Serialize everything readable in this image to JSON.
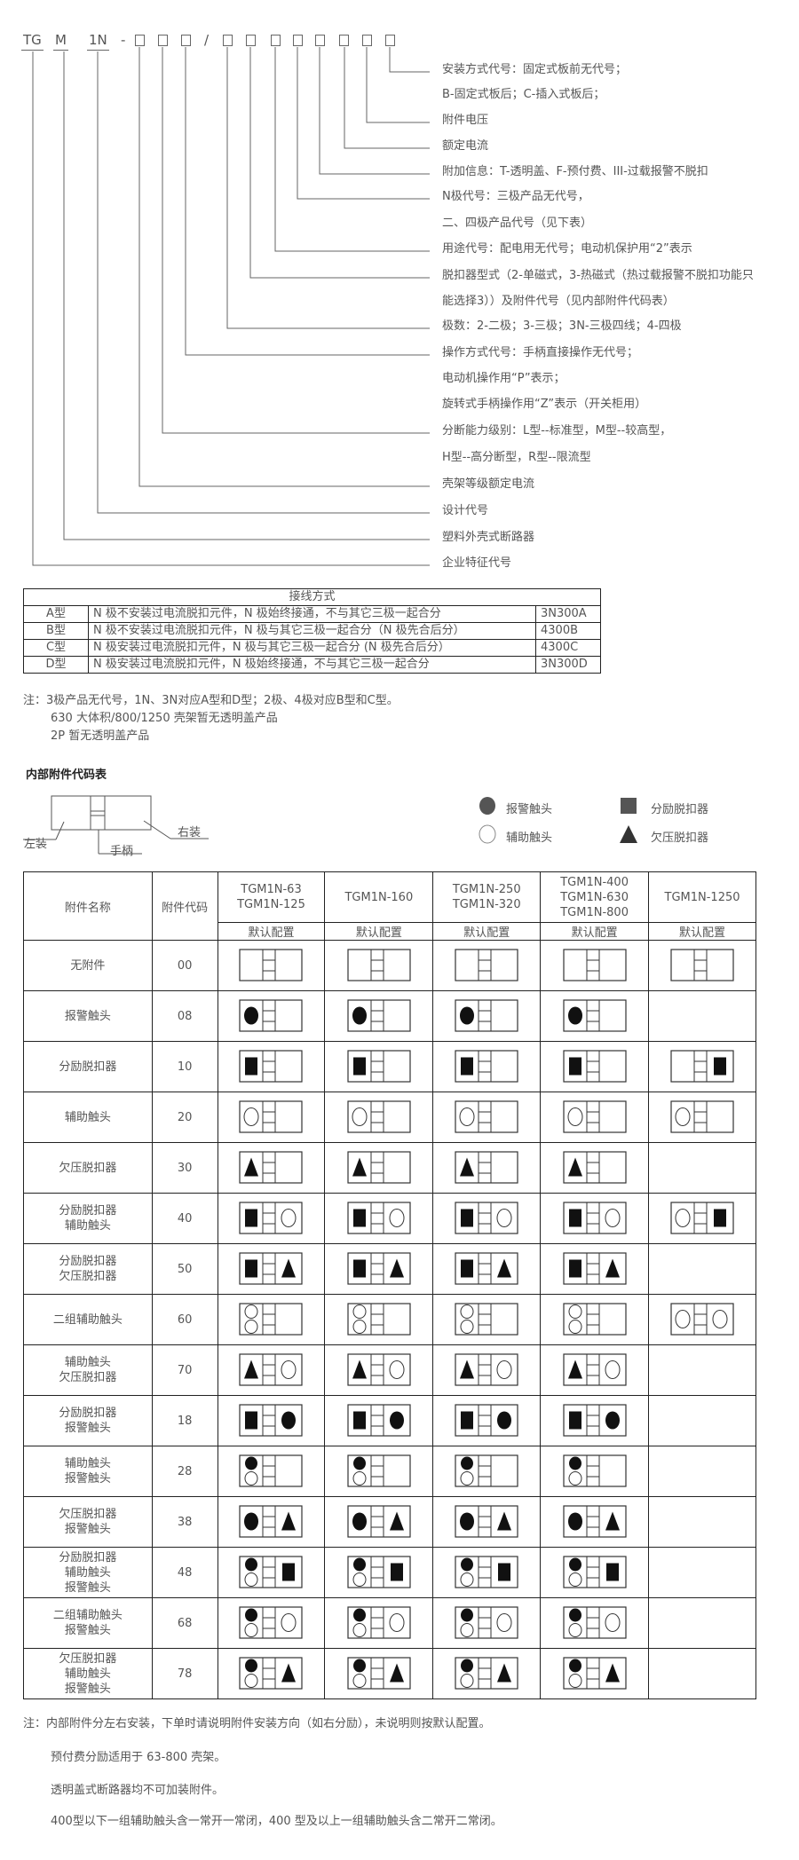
{
  "model_code": {
    "parts": [
      "TG",
      "M",
      "1N"
    ],
    "separator_dash": "-",
    "separator_slash": "/",
    "placeholder_boxes_before_slash": 3,
    "placeholder_boxes_after_slash": 8
  },
  "descriptions": [
    "安装方式代号：固定式板前无代号；",
    "B-固定式板后；C-插入式板后；",
    "附件电压",
    "额定电流",
    "附加信息：T-透明盖、F-预付费、III-过载报警不脱扣",
    "N极代号：三极产品无代号，",
    "二、四极产品代号（见下表）",
    "用途代号：配电用无代号；电动机保护用“2”表示",
    "脱扣器型式（2-单磁式，3-热磁式（热过载报警不脱扣功能只",
    "能选择3））及附件代号（见内部附件代码表）",
    "极数：2-二极；3-三极；3N-三极四线；4-四极",
    "操作方式代号：手柄直接操作无代号；",
    "电动机操作用“P”表示；",
    "旋转式手柄操作用“Z”表示（开关柜用）",
    "分断能力级别：L型--标准型，M型--较高型，",
    "H型--高分断型，R型--限流型",
    "壳架等级额定电流",
    "设计代号",
    "塑料外壳式断路器",
    "企业特征代号"
  ],
  "wiring_table": {
    "header": "接线方式",
    "rows": [
      {
        "type": "A型",
        "desc": "N 极不安装过电流脱扣元件，N 极始终接通，不与其它三极一起合分",
        "code": "3N300A"
      },
      {
        "type": "B型",
        "desc": "N 极不安装过电流脱扣元件，N 极与其它三极一起合分（N 极先合后分）",
        "code": "4300B"
      },
      {
        "type": "C型",
        "desc": "N 极安装过电流脱扣元件，N 极与其它三极一起合分 (N 极先合后分）",
        "code": "4300C"
      },
      {
        "type": "D型",
        "desc": "N 极安装过电流脱扣元件，N 极始终接通，不与其它三极一起合分",
        "code": "3N300D"
      }
    ]
  },
  "wiring_notes": [
    "注：3极产品无代号，1N、3N对应A型和D型；2极、4极对应B型和C型。",
    "630 大体积/800/1250 壳架暂无透明盖产品",
    "2P 暂无透明盖产品"
  ],
  "accessory_section": {
    "title": "内部附件代码表",
    "diagram_labels": {
      "left": "左装",
      "right": "右装",
      "handle": "手柄"
    },
    "legend": [
      {
        "symbol": "filled-circle",
        "label": "报警触头"
      },
      {
        "symbol": "filled-square",
        "label": "分励脱扣器"
      },
      {
        "symbol": "hollow-circle",
        "label": "辅助触头"
      },
      {
        "symbol": "filled-triangle",
        "label": "欠压脱扣器"
      }
    ]
  },
  "accessory_table": {
    "col_name": "附件名称",
    "col_code": "附件代码",
    "models": [
      "TGM1N-63\nTGM1N-125",
      "TGM1N-160",
      "TGM1N-250\nTGM1N-320",
      "TGM1N-400\nTGM1N-630\nTGM1N-800",
      "TGM1N-1250"
    ],
    "sub_header": "默认配置",
    "rows": [
      {
        "name": "无附件",
        "code": "00",
        "cells": [
          {
            "l": [],
            "r": []
          },
          {
            "l": [],
            "r": []
          },
          {
            "l": [],
            "r": []
          },
          {
            "l": [],
            "r": []
          },
          {
            "l": [],
            "r": []
          }
        ]
      },
      {
        "name": "报警触头",
        "code": "08",
        "cells": [
          {
            "l": [
              "alarm"
            ],
            "r": []
          },
          {
            "l": [
              "alarm"
            ],
            "r": []
          },
          {
            "l": [
              "alarm"
            ],
            "r": []
          },
          {
            "l": [
              "alarm"
            ],
            "r": []
          },
          null
        ]
      },
      {
        "name": "分励脱扣器",
        "code": "10",
        "cells": [
          {
            "l": [
              "shunt"
            ],
            "r": []
          },
          {
            "l": [
              "shunt"
            ],
            "r": []
          },
          {
            "l": [
              "shunt"
            ],
            "r": []
          },
          {
            "l": [
              "shunt"
            ],
            "r": []
          },
          {
            "l": [],
            "r": [
              "shunt"
            ]
          }
        ]
      },
      {
        "name": "辅助触头",
        "code": "20",
        "cells": [
          {
            "l": [
              "aux"
            ],
            "r": []
          },
          {
            "l": [
              "aux"
            ],
            "r": []
          },
          {
            "l": [
              "aux"
            ],
            "r": []
          },
          {
            "l": [
              "aux"
            ],
            "r": []
          },
          {
            "l": [
              "aux"
            ],
            "r": []
          }
        ]
      },
      {
        "name": "欠压脱扣器",
        "code": "30",
        "cells": [
          {
            "l": [
              "under"
            ],
            "r": []
          },
          {
            "l": [
              "under"
            ],
            "r": []
          },
          {
            "l": [
              "under"
            ],
            "r": []
          },
          {
            "l": [
              "under"
            ],
            "r": []
          },
          null
        ]
      },
      {
        "name": "分励脱扣器\n辅助触头",
        "code": "40",
        "cells": [
          {
            "l": [
              "shunt"
            ],
            "r": [
              "aux"
            ]
          },
          {
            "l": [
              "shunt"
            ],
            "r": [
              "aux"
            ]
          },
          {
            "l": [
              "shunt"
            ],
            "r": [
              "aux"
            ]
          },
          {
            "l": [
              "shunt"
            ],
            "r": [
              "aux"
            ]
          },
          {
            "l": [
              "aux"
            ],
            "r": [
              "shunt"
            ]
          }
        ]
      },
      {
        "name": "分励脱扣器\n欠压脱扣器",
        "code": "50",
        "cells": [
          {
            "l": [
              "shunt"
            ],
            "r": [
              "under"
            ]
          },
          {
            "l": [
              "shunt"
            ],
            "r": [
              "under"
            ]
          },
          {
            "l": [
              "shunt"
            ],
            "r": [
              "under"
            ]
          },
          {
            "l": [
              "shunt"
            ],
            "r": [
              "under"
            ]
          },
          null
        ]
      },
      {
        "name": "二组辅助触头",
        "code": "60",
        "cells": [
          {
            "l": [
              "aux",
              "aux"
            ],
            "r": []
          },
          {
            "l": [
              "aux",
              "aux"
            ],
            "r": []
          },
          {
            "l": [
              "aux",
              "aux"
            ],
            "r": []
          },
          {
            "l": [
              "aux",
              "aux"
            ],
            "r": []
          },
          {
            "l": [
              "aux"
            ],
            "r": [
              "aux"
            ]
          }
        ]
      },
      {
        "name": "辅助触头\n欠压脱扣器",
        "code": "70",
        "cells": [
          {
            "l": [
              "under"
            ],
            "r": [
              "aux"
            ]
          },
          {
            "l": [
              "under"
            ],
            "r": [
              "aux"
            ]
          },
          {
            "l": [
              "under"
            ],
            "r": [
              "aux"
            ]
          },
          {
            "l": [
              "under"
            ],
            "r": [
              "aux"
            ]
          },
          null
        ]
      },
      {
        "name": "分励脱扣器\n报警触头",
        "code": "18",
        "cells": [
          {
            "l": [
              "shunt"
            ],
            "r": [
              "alarm"
            ]
          },
          {
            "l": [
              "shunt"
            ],
            "r": [
              "alarm"
            ]
          },
          {
            "l": [
              "shunt"
            ],
            "r": [
              "alarm"
            ]
          },
          {
            "l": [
              "shunt"
            ],
            "r": [
              "alarm"
            ]
          },
          null
        ]
      },
      {
        "name": "辅助触头\n报警触头",
        "code": "28",
        "cells": [
          {
            "l": [
              "alarm",
              "aux"
            ],
            "r": []
          },
          {
            "l": [
              "alarm",
              "aux"
            ],
            "r": []
          },
          {
            "l": [
              "alarm",
              "aux"
            ],
            "r": []
          },
          {
            "l": [
              "alarm",
              "aux"
            ],
            "r": []
          },
          null
        ]
      },
      {
        "name": "欠压脱扣器\n报警触头",
        "code": "38",
        "cells": [
          {
            "l": [
              "alarm"
            ],
            "r": [
              "under"
            ]
          },
          {
            "l": [
              "alarm"
            ],
            "r": [
              "under"
            ]
          },
          {
            "l": [
              "alarm"
            ],
            "r": [
              "under"
            ]
          },
          {
            "l": [
              "alarm"
            ],
            "r": [
              "under"
            ]
          },
          null
        ]
      },
      {
        "name": "分励脱扣器\n辅助触头\n报警触头",
        "code": "48",
        "cells": [
          {
            "l": [
              "alarm",
              "aux"
            ],
            "r": [
              "shunt"
            ]
          },
          {
            "l": [
              "alarm",
              "aux"
            ],
            "r": [
              "shunt"
            ]
          },
          {
            "l": [
              "alarm",
              "aux"
            ],
            "r": [
              "shunt"
            ]
          },
          {
            "l": [
              "alarm",
              "aux"
            ],
            "r": [
              "shunt"
            ]
          },
          null
        ]
      },
      {
        "name": "二组辅助触头\n报警触头",
        "code": "68",
        "cells": [
          {
            "l": [
              "alarm",
              "aux"
            ],
            "r": [
              "aux"
            ]
          },
          {
            "l": [
              "alarm",
              "aux"
            ],
            "r": [
              "aux"
            ]
          },
          {
            "l": [
              "alarm",
              "aux"
            ],
            "r": [
              "aux"
            ]
          },
          {
            "l": [
              "alarm",
              "aux"
            ],
            "r": [
              "aux"
            ]
          },
          null
        ]
      },
      {
        "name": "欠压脱扣器\n辅助触头\n报警触头",
        "code": "78",
        "cells": [
          {
            "l": [
              "alarm",
              "aux"
            ],
            "r": [
              "under"
            ]
          },
          {
            "l": [
              "alarm",
              "aux"
            ],
            "r": [
              "under"
            ]
          },
          {
            "l": [
              "alarm",
              "aux"
            ],
            "r": [
              "under"
            ]
          },
          {
            "l": [
              "alarm",
              "aux"
            ],
            "r": [
              "under"
            ]
          },
          null
        ]
      }
    ]
  },
  "bottom_notes": [
    "注：内部附件分左右安装，下单时请说明附件安装方向（如右分励），未说明则按默认配置。",
    "预付费分励适用于 63-800 壳架。",
    "透明盖式断路器均不可加装附件。",
    "400型以下一组辅助触头含一常开一常闭，400 型及以上一组辅助触头含二常开二常闭。"
  ],
  "colors": {
    "text": "#555555",
    "lines": "#666666",
    "border": "#222222",
    "symbol": "#111111"
  }
}
